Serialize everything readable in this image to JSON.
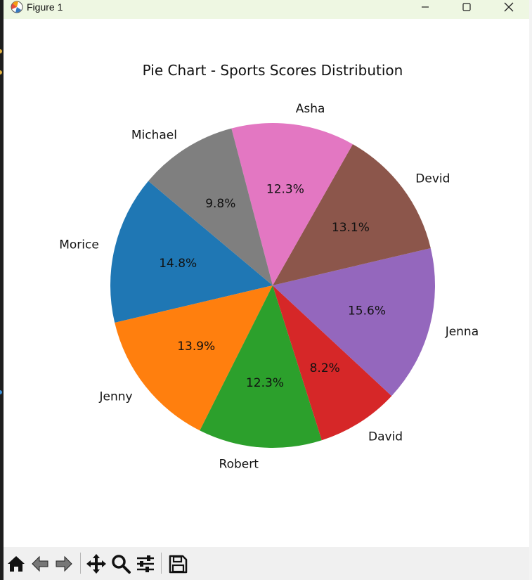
{
  "window": {
    "title": "Figure 1",
    "controls": [
      "minimize",
      "maximize",
      "close"
    ]
  },
  "toolbar": {
    "buttons": [
      {
        "name": "home",
        "icon": "home-icon"
      },
      {
        "name": "back",
        "icon": "back-arrow-icon"
      },
      {
        "name": "forward",
        "icon": "forward-arrow-icon"
      },
      {
        "name": "pan",
        "icon": "move-icon"
      },
      {
        "name": "zoom",
        "icon": "zoom-icon"
      },
      {
        "name": "configure-subplots",
        "icon": "sliders-icon"
      },
      {
        "name": "save",
        "icon": "save-icon"
      }
    ]
  },
  "chart_data": {
    "type": "pie",
    "title": "Pie Chart - Sports Scores Distribution",
    "start_angle_deg": 140,
    "direction": "counterclockwise",
    "slices": [
      {
        "label": "Morice",
        "pct_label": "14.8%",
        "value": 14.8,
        "color": "#1f77b4"
      },
      {
        "label": "Jenny",
        "pct_label": "13.9%",
        "value": 13.9,
        "color": "#ff7f0e"
      },
      {
        "label": "Robert",
        "pct_label": "12.3%",
        "value": 12.3,
        "color": "#2ca02c"
      },
      {
        "label": "David",
        "pct_label": "8.2%",
        "value": 8.2,
        "color": "#d62728"
      },
      {
        "label": "Jenna",
        "pct_label": "15.6%",
        "value": 15.6,
        "color": "#9467bd"
      },
      {
        "label": "Devid",
        "pct_label": "13.1%",
        "value": 13.1,
        "color": "#8c564b"
      },
      {
        "label": "Asha",
        "pct_label": "12.3%",
        "value": 12.3,
        "color": "#e377c2"
      },
      {
        "label": "Michael",
        "pct_label": "9.8%",
        "value": 9.8,
        "color": "#7f7f7f"
      }
    ]
  }
}
